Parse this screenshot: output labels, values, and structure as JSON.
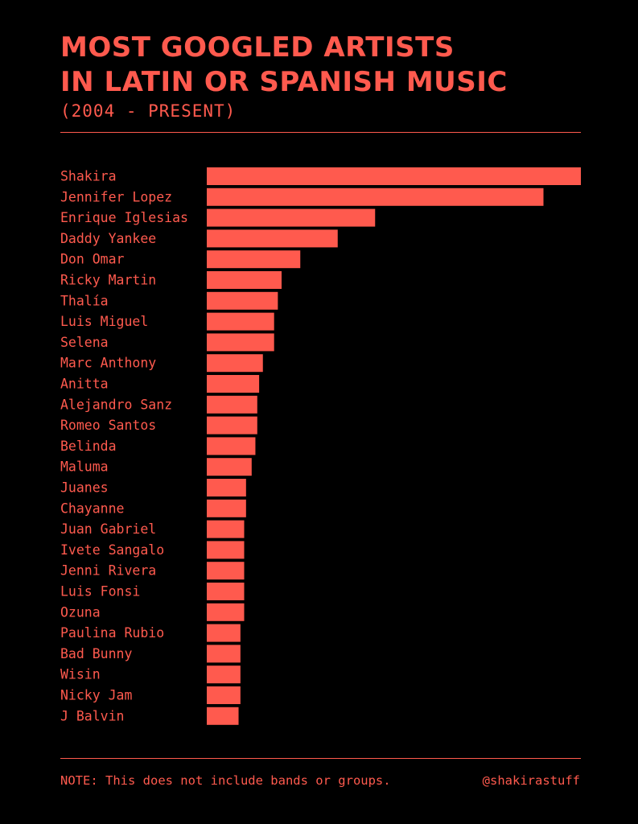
{
  "theme": {
    "background": "#000000",
    "accent": "#ff5a4e"
  },
  "header": {
    "title_line1": "MOST GOOGLED ARTISTS",
    "title_line2": "IN LATIN OR SPANISH MUSIC",
    "subtitle": "(2004 - PRESENT)"
  },
  "chart_data": {
    "type": "bar",
    "orientation": "horizontal",
    "title": "MOST GOOGLED ARTISTS IN LATIN OR SPANISH MUSIC",
    "subtitle": "(2004 - PRESENT)",
    "xlabel": "",
    "ylabel": "",
    "xlim": [
      0,
      100
    ],
    "grid": false,
    "categories": [
      "Shakira",
      "Jennifer Lopez",
      "Enrique Iglesias",
      "Daddy Yankee",
      "Don Omar",
      "Ricky Martin",
      "Thalía",
      "Luis Miguel",
      "Selena",
      "Marc Anthony",
      "Anitta",
      "Alejandro Sanz",
      "Romeo Santos",
      "Belinda",
      "Maluma",
      "Juanes",
      "Chayanne",
      "Juan Gabriel",
      "Ivete Sangalo",
      "Jenni Rivera",
      "Luis Fonsi",
      "Ozuna",
      "Paulina Rubio",
      "Bad Bunny",
      "Wisin",
      "Nicky Jam",
      "J Balvin"
    ],
    "values": [
      100,
      90,
      45,
      35,
      25,
      20,
      19,
      18,
      18,
      15,
      14,
      13.5,
      13.5,
      13,
      12,
      10.5,
      10.5,
      10,
      10,
      10,
      10,
      10,
      9,
      9,
      9,
      9,
      8.5
    ]
  },
  "footer": {
    "note": "NOTE: This does not include bands or groups.",
    "handle": "@shakirastuff"
  }
}
